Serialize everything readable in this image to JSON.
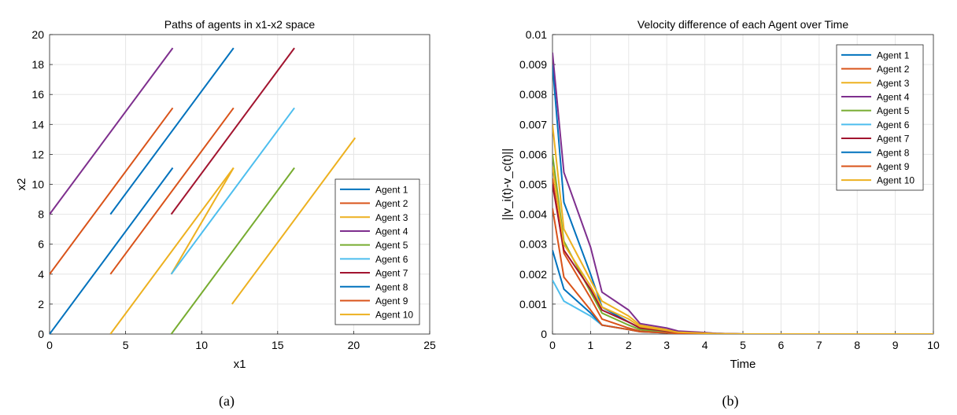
{
  "chart_data": [
    {
      "type": "line",
      "title": "Paths of agents in x1-x2 space",
      "xlabel": "x1",
      "ylabel": "x2",
      "xlim": [
        0,
        25
      ],
      "ylim": [
        0,
        20
      ],
      "xticks": [
        0,
        5,
        10,
        15,
        20,
        25
      ],
      "yticks": [
        0,
        2,
        4,
        6,
        8,
        10,
        12,
        14,
        16,
        18,
        20
      ],
      "grid": true,
      "legend_position": "bottom-right",
      "caption": "(a)",
      "series": [
        {
          "name": "Agent 1",
          "color": "#0072BD",
          "x": [
            4,
            12.1
          ],
          "y": [
            8,
            19.1
          ]
        },
        {
          "name": "Agent 2",
          "color": "#D95319",
          "x": [
            0,
            8.1
          ],
          "y": [
            4,
            15.1
          ]
        },
        {
          "name": "Agent 3",
          "color": "#EDB120",
          "x": [
            8,
            12.1
          ],
          "y": [
            4,
            11.1
          ]
        },
        {
          "name": "Agent 4",
          "color": "#7E2F8E",
          "x": [
            0,
            8.1
          ],
          "y": [
            8,
            19.1
          ]
        },
        {
          "name": "Agent 5",
          "color": "#77AC30",
          "x": [
            8,
            16.1
          ],
          "y": [
            0,
            11.1
          ]
        },
        {
          "name": "Agent 6",
          "color": "#4DBEEE",
          "x": [
            8,
            16.1
          ],
          "y": [
            4,
            15.1
          ]
        },
        {
          "name": "Agent 7",
          "color": "#A2142F",
          "x": [
            8,
            16.1
          ],
          "y": [
            8,
            19.1
          ]
        },
        {
          "name": "Agent 8",
          "color": "#0072BD",
          "x": [
            0,
            8.1
          ],
          "y": [
            0,
            11.1
          ]
        },
        {
          "name": "Agent 9",
          "color": "#D95319",
          "x": [
            4,
            12.1
          ],
          "y": [
            4,
            15.1
          ]
        },
        {
          "name": "Agent 10",
          "color": "#EDB120",
          "x": [
            12,
            20.1
          ],
          "y": [
            2,
            13.1
          ]
        }
      ],
      "extra_lines": [
        {
          "color": "#EDB120",
          "x": [
            4,
            12.1
          ],
          "y": [
            0,
            11.1
          ]
        }
      ]
    },
    {
      "type": "line",
      "title": "Velocity difference of each Agent over Time",
      "xlabel": "Time",
      "ylabel": "||v_i(t)-v_c(t)||",
      "xlim": [
        0,
        10
      ],
      "ylim": [
        0,
        0.01
      ],
      "xticks": [
        0,
        1,
        2,
        3,
        4,
        5,
        6,
        7,
        8,
        9,
        10
      ],
      "yticks": [
        0,
        0.001,
        0.002,
        0.003,
        0.004,
        0.005,
        0.006,
        0.007,
        0.008,
        0.009,
        0.01
      ],
      "ytick_labels": [
        "0",
        "0.001",
        "0.002",
        "0.003",
        "0.004",
        "0.005",
        "0.006",
        "0.007",
        "0.008",
        "0.009",
        "0.01"
      ],
      "grid": true,
      "legend_position": "top-right",
      "caption": "(b)",
      "x": [
        0,
        0.3,
        1,
        1.3,
        2,
        2.3,
        3,
        3.3,
        4,
        4.3,
        5,
        6,
        7,
        8,
        9,
        10
      ],
      "series": [
        {
          "name": "Agent 1",
          "color": "#0072BD",
          "values": [
            0.009,
            0.0044,
            0.002,
            0.0009,
            0.0004,
            0.0002,
            0.00012,
            8e-05,
            4e-05,
            2e-05,
            0,
            0,
            0,
            0,
            0,
            0
          ]
        },
        {
          "name": "Agent 2",
          "color": "#D95319",
          "values": [
            0.0052,
            0.0027,
            0.0012,
            0.0005,
            0.0002,
            0.0001,
            6e-05,
            4e-05,
            2e-05,
            1e-05,
            0,
            0,
            0,
            0,
            0,
            0
          ]
        },
        {
          "name": "Agent 3",
          "color": "#EDB120",
          "values": [
            0.007,
            0.0035,
            0.0018,
            0.0011,
            0.0006,
            0.0003,
            0.00015,
            8e-05,
            4e-05,
            2e-05,
            0,
            0,
            0,
            0,
            0,
            0
          ]
        },
        {
          "name": "Agent 4",
          "color": "#7E2F8E",
          "values": [
            0.0094,
            0.0054,
            0.0029,
            0.0014,
            0.0008,
            0.00035,
            0.0002,
            0.0001,
            5e-05,
            2e-05,
            0,
            0,
            0,
            0,
            0,
            0
          ]
        },
        {
          "name": "Agent 5",
          "color": "#77AC30",
          "values": [
            0.006,
            0.0031,
            0.0014,
            0.0007,
            0.0003,
            0.00015,
            8e-05,
            4e-05,
            2e-05,
            1e-05,
            0,
            0,
            0,
            0,
            0,
            0
          ]
        },
        {
          "name": "Agent 6",
          "color": "#4DBEEE",
          "values": [
            0.0018,
            0.0011,
            0.0006,
            0.0003,
            0.00015,
            8e-05,
            4e-05,
            2e-05,
            1e-05,
            0,
            0,
            0,
            0,
            0,
            0,
            0
          ]
        },
        {
          "name": "Agent 7",
          "color": "#A2142F",
          "values": [
            0.005,
            0.0028,
            0.0015,
            0.0008,
            0.0004,
            0.0002,
            0.0001,
            5e-05,
            2e-05,
            1e-05,
            0,
            0,
            0,
            0,
            0,
            0
          ]
        },
        {
          "name": "Agent 8",
          "color": "#0072BD",
          "values": [
            0.0028,
            0.0015,
            0.0007,
            0.0003,
            0.00015,
            8e-05,
            4e-05,
            2e-05,
            1e-05,
            0,
            0,
            0,
            0,
            0,
            0,
            0
          ]
        },
        {
          "name": "Agent 9",
          "color": "#D95319",
          "values": [
            0.0042,
            0.0019,
            0.0008,
            0.0003,
            0.00015,
            8e-05,
            4e-05,
            2e-05,
            1e-05,
            0,
            0,
            0,
            0,
            0,
            0,
            0
          ]
        },
        {
          "name": "Agent 10",
          "color": "#EDB120",
          "values": [
            0.0056,
            0.003,
            0.0016,
            0.0009,
            0.0005,
            0.00025,
            0.00012,
            6e-05,
            3e-05,
            1e-05,
            0,
            0,
            0,
            0,
            0,
            0
          ]
        }
      ]
    }
  ]
}
